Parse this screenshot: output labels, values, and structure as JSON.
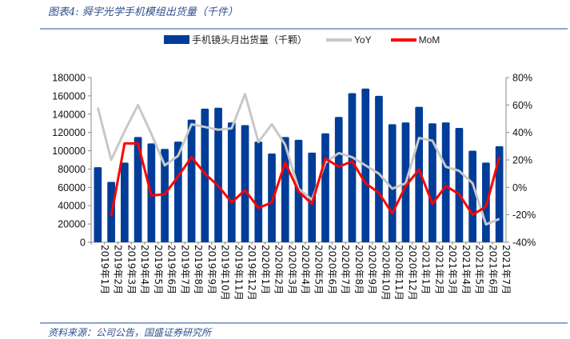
{
  "title": "图表4:  舜宇光学手机模组出货量（千件）",
  "footer": "资料来源：公司公告，国盛证券研究所",
  "colors": {
    "bar": "#003D99",
    "yoy": "#C8C8C8",
    "mom": "#FF0000"
  },
  "chart_data": {
    "type": "bar+line",
    "title": "舜宇光学手机模组出货量（千件）",
    "categories": [
      "2019年1月",
      "2019年2月",
      "2019年3月",
      "2019年4月",
      "2019年5月",
      "2019年6月",
      "2019年7月",
      "2019年8月",
      "2019年9月",
      "2019年10月",
      "2019年11月",
      "2019年12月",
      "2020年1月",
      "2020年2月",
      "2020年3月",
      "2020年4月",
      "2020年5月",
      "2020年6月",
      "2020年7月",
      "2020年8月",
      "2020年9月",
      "2020年10月",
      "2020年11月",
      "2020年12月",
      "2021年1月",
      "2021年2月",
      "2021年3月",
      "2021年4月",
      "2021年5月",
      "2021年6月",
      "2021年7月"
    ],
    "series": [
      {
        "name": "手机镜头月出货量（千颗）",
        "type": "bar",
        "axis": "left",
        "values": [
          82000,
          66000,
          87000,
          115000,
          108000,
          102000,
          110000,
          134000,
          146000,
          147000,
          131000,
          128000,
          110000,
          97000,
          115000,
          112000,
          98000,
          119000,
          137000,
          163000,
          168000,
          160000,
          129000,
          131000,
          148000,
          130000,
          131000,
          125000,
          100000,
          87000,
          105000
        ]
      },
      {
        "name": "YoY",
        "type": "line",
        "axis": "right",
        "values": [
          58,
          20,
          41,
          60,
          39,
          16,
          23,
          46,
          44,
          42,
          43,
          68,
          33,
          46,
          31,
          -1,
          -9,
          18,
          25,
          22,
          16,
          10,
          -1,
          3,
          36,
          34,
          15,
          12,
          3,
          -27,
          -23
        ]
      },
      {
        "name": "MoM",
        "type": "line",
        "axis": "right",
        "values": [
          null,
          -21,
          32,
          32,
          -6,
          -5,
          8,
          22,
          10,
          1,
          -11,
          -2,
          -15,
          -11,
          18,
          -3,
          -12,
          21,
          15,
          19,
          3,
          -4,
          -19,
          1,
          13,
          -12,
          1,
          -5,
          -20,
          -14,
          22
        ]
      }
    ],
    "left_axis": {
      "min": 0,
      "max": 180000,
      "ticks": [
        "0",
        "20000",
        "40000",
        "60000",
        "80000",
        "100000",
        "120000",
        "140000",
        "160000",
        "180000"
      ]
    },
    "right_axis": {
      "min": -40,
      "max": 80,
      "unit": "%",
      "ticks": [
        "-40%",
        "-20%",
        "0%",
        "20%",
        "40%",
        "60%",
        "80%"
      ]
    },
    "legend": "top",
    "grid": false
  }
}
